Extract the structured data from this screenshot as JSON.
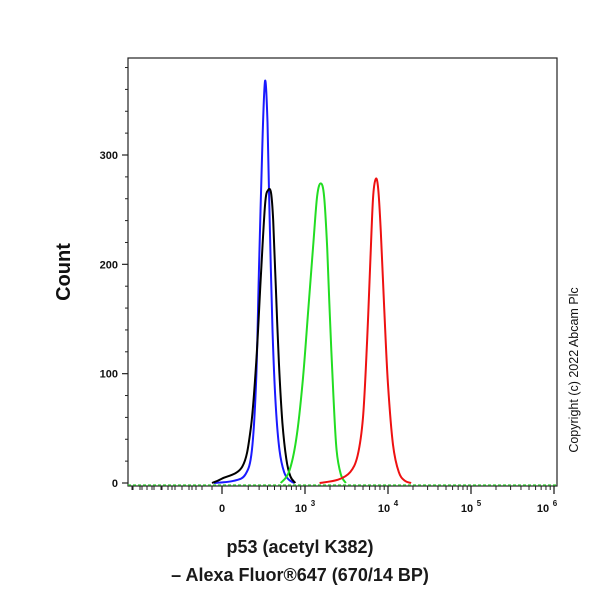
{
  "chart_data": {
    "type": "line",
    "ylabel": "Count",
    "xlabel_line1": "p53 (acetyl K382)",
    "xlabel_line2": "– Alexa Fluor®647 (670/14 BP)",
    "copyright": "Copyright (c) 2022 Abcam Plc",
    "ylim": [
      0,
      390
    ],
    "yticks": [
      {
        "value": 0,
        "label": "0"
      },
      {
        "value": 100,
        "label": "100"
      },
      {
        "value": 200,
        "label": "200"
      },
      {
        "value": 300,
        "label": "300"
      }
    ],
    "x_scale": "logicle",
    "xticks": [
      {
        "label": "0",
        "power": ""
      },
      {
        "label": "10",
        "power": "3"
      },
      {
        "label": "10",
        "power": "4"
      },
      {
        "label": "10",
        "power": "5"
      },
      {
        "label": "10",
        "power": "6"
      }
    ],
    "series": [
      {
        "color": "#1a1aff",
        "x": [
          -80,
          20,
          80,
          130,
          170,
          200,
          240,
          270,
          300,
          330,
          370,
          420,
          480,
          560,
          650,
          760
        ],
        "y": [
          0,
          2,
          8,
          30,
          95,
          200,
          320,
          368,
          330,
          240,
          140,
          70,
          30,
          10,
          3,
          0
        ]
      },
      {
        "color": "#000000",
        "x": [
          -100,
          0,
          60,
          120,
          170,
          220,
          270,
          310,
          350,
          380,
          420,
          470,
          530,
          600,
          680,
          780
        ],
        "y": [
          0,
          4,
          15,
          50,
          110,
          190,
          255,
          268,
          265,
          240,
          180,
          110,
          55,
          22,
          6,
          0
        ]
      },
      {
        "color": "#22dd22",
        "x": [
          500,
          650,
          800,
          950,
          1100,
          1250,
          1400,
          1550,
          1700,
          1850,
          2000,
          2200,
          2400,
          2700,
          3100
        ],
        "y": [
          0,
          10,
          40,
          95,
          160,
          215,
          262,
          274,
          262,
          215,
          150,
          80,
          30,
          8,
          0
        ]
      },
      {
        "color": "#ee1111",
        "x": [
          1500,
          2500,
          3500,
          4300,
          5000,
          5600,
          6100,
          6600,
          7100,
          7600,
          8200,
          9000,
          10000,
          11500,
          13500,
          16000,
          19000
        ],
        "y": [
          0,
          3,
          10,
          25,
          60,
          130,
          200,
          260,
          278,
          270,
          230,
          160,
          90,
          35,
          10,
          2,
          0
        ]
      }
    ]
  }
}
